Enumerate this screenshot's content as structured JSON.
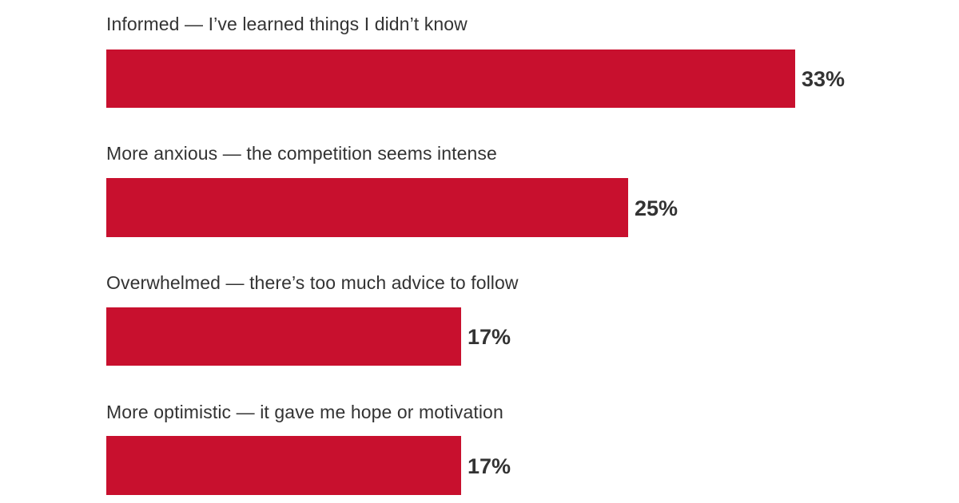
{
  "accent_color": "#c8102e",
  "text_color": "#333333",
  "chart_data": {
    "type": "bar",
    "orientation": "horizontal",
    "title": "",
    "xlabel": "",
    "ylabel": "",
    "categories": [
      "Informed — I’ve learned things I didn’t know",
      "More anxious — the competition seems intense",
      "Overwhelmed — there’s too much advice to follow",
      "More optimistic — it gave me hope or motivation"
    ],
    "values": [
      33,
      25,
      17,
      17
    ],
    "value_labels": [
      "33%",
      "25%",
      "17%",
      "17%"
    ],
    "unit": "%",
    "grid": false,
    "legend": null
  }
}
